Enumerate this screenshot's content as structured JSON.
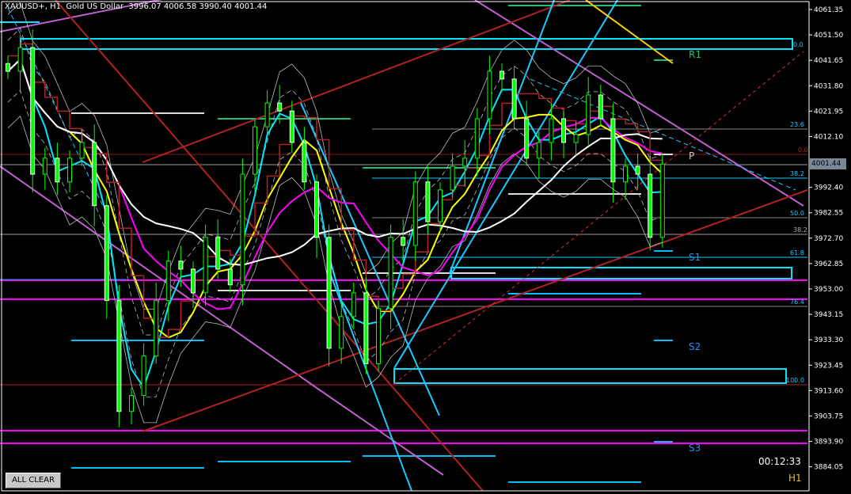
{
  "header": {
    "symbol": "XAUUSD+, H1",
    "description": "Gold US Dollar",
    "open": "3996.07",
    "high": "4006.58",
    "low": "3990.40",
    "close": "4001.44"
  },
  "axis": {
    "ticks": [
      "4061.35",
      "4051.50",
      "4041.65",
      "4031.80",
      "4021.95",
      "4012.10",
      "4001.44",
      "3992.40",
      "3982.55",
      "3972.70",
      "3962.85",
      "3953.00",
      "3943.15",
      "3933.30",
      "3923.45",
      "3913.60",
      "3903.75",
      "3893.90",
      "3884.05"
    ],
    "current_price": "4001.44"
  },
  "fib_labels": [
    "0.0",
    "23.6",
    "0.0",
    "38.2",
    "50.0",
    "38.2",
    "61.8",
    "76.4",
    "100.0"
  ],
  "pivots": {
    "r1": "R1",
    "p": "P",
    "s1": "S1",
    "s2": "S2",
    "s3": "S3"
  },
  "colors": {
    "bull": "#00ff00",
    "bear": "#ffffff",
    "ma_yellow": "#ffff00",
    "ma_white": "#ffffff",
    "ma_magenta": "#ff00ff",
    "ma_cyan": "#00e5ff",
    "trend_brown": "#b22222",
    "trend_violet": "#c060d0",
    "fib": "#1ec8ff",
    "rect_cyan": "#00e5ff",
    "rect_magenta": "#ff00ff",
    "pivot_green": "#20c070",
    "pivot_blue": "#1e90ff"
  },
  "chart_data": {
    "type": "candlestick",
    "closes": [
      4037.4,
      4046.6,
      3997.5,
      4003.7,
      3994.5,
      4003.7,
      4009.8,
      3985.3,
      3948.5,
      3905.5,
      3911.7,
      3927.0,
      3948.5,
      3963.8,
      3960.7,
      3951.5,
      3973.0,
      3960.7,
      3954.6,
      3997.5,
      4015.9,
      4025.1,
      4022.0,
      4009.8,
      3994.5,
      3973.0,
      3930.0,
      3942.3,
      3951.5,
      3924.0,
      3945.4,
      3973.0,
      3969.9,
      3994.5,
      3979.1,
      3991.4,
      4000.6,
      4003.7,
      4019.0,
      4037.4,
      4034.4,
      4019.0,
      4003.7,
      4009.8,
      4019.0,
      4009.8,
      4012.9,
      4028.2,
      4019.0,
      3994.5,
      4000.6,
      3997.5,
      3973.0,
      4001.44
    ]
  },
  "overlay": {
    "timer": "00:12:33",
    "timeframe": "H1",
    "all_clear": "ALL CLEAR"
  }
}
